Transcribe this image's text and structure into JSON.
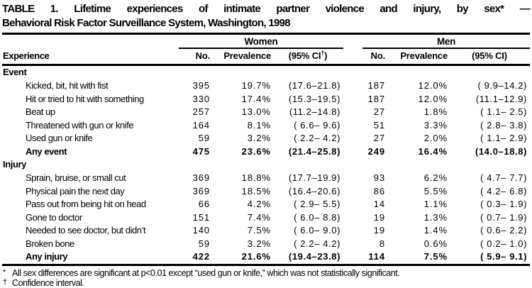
{
  "title": {
    "line1": "TABLE 1. Lifetime experiences of intimate partner violence and injury, by sex* —",
    "line2": "Behavioral Risk Factor Surveillance System, Washington, 1998"
  },
  "header": {
    "experience": "Experience",
    "women_label": "Women",
    "men_label": "Men",
    "no_label": "No.",
    "prevalence_label": "Prevalence",
    "women_ci_pre": "(95% CI",
    "women_ci_dagger": "†",
    "women_ci_post": ")",
    "men_ci": "(95% CI)"
  },
  "table": {
    "sections": [
      {
        "label": "Event",
        "rows": [
          {
            "experience": "Kicked, bit, hit with fist",
            "bold": false,
            "women": {
              "no": "395",
              "prevalence": "19.7%",
              "ci": "(17.6–21.8)"
            },
            "men": {
              "no": "187",
              "prevalence": "12.0%",
              "ci": "( 9.9–14.2)"
            }
          },
          {
            "experience": "Hit or tried to hit with something",
            "bold": false,
            "women": {
              "no": "330",
              "prevalence": "17.4%",
              "ci": "(15.3–19.5)"
            },
            "men": {
              "no": "187",
              "prevalence": "12.0%",
              "ci": "(11.1–12.9)"
            }
          },
          {
            "experience": "Beat up",
            "bold": false,
            "women": {
              "no": "257",
              "prevalence": "13.0%",
              "ci": "(11.2–14.8)"
            },
            "men": {
              "no": "27",
              "prevalence": "1.8%",
              "ci": "( 1.1– 2.5)"
            }
          },
          {
            "experience": "Threatened with gun or knife",
            "bold": false,
            "women": {
              "no": "164",
              "prevalence": "8.1%",
              "ci": "( 6.6– 9.6)"
            },
            "men": {
              "no": "51",
              "prevalence": "3.3%",
              "ci": "( 2.8– 3.8)"
            }
          },
          {
            "experience": "Used gun or knife",
            "bold": false,
            "women": {
              "no": "59",
              "prevalence": "3.2%",
              "ci": "( 2.2– 4.2)"
            },
            "men": {
              "no": "27",
              "prevalence": "2.0%",
              "ci": "( 1.1– 2.9)"
            }
          },
          {
            "experience": "Any event",
            "bold": true,
            "women": {
              "no": "475",
              "prevalence": "23.6%",
              "ci": "(21.4–25.8)"
            },
            "men": {
              "no": "249",
              "prevalence": "16.4%",
              "ci": "(14.0–18.8)"
            }
          }
        ]
      },
      {
        "label": "Injury",
        "rows": [
          {
            "experience": "Sprain, bruise, or small cut",
            "bold": false,
            "women": {
              "no": "369",
              "prevalence": "18.8%",
              "ci": "(17.7–19.9)"
            },
            "men": {
              "no": "93",
              "prevalence": "6.2%",
              "ci": "( 4.7– 7.7)"
            }
          },
          {
            "experience": "Physical pain the next day",
            "bold": false,
            "women": {
              "no": "369",
              "prevalence": "18.5%",
              "ci": "(16.4–20.6)"
            },
            "men": {
              "no": "86",
              "prevalence": "5.5%",
              "ci": "( 4.2– 6.8)"
            }
          },
          {
            "experience": "Pass out from being hit on head",
            "bold": false,
            "women": {
              "no": "66",
              "prevalence": "4.2%",
              "ci": "( 2.9– 5.5)"
            },
            "men": {
              "no": "14",
              "prevalence": "1.1%",
              "ci": "( 0.3– 1.9)"
            }
          },
          {
            "experience": "Gone to doctor",
            "bold": false,
            "women": {
              "no": "151",
              "prevalence": "7.4%",
              "ci": "( 6.0– 8.8)"
            },
            "men": {
              "no": "19",
              "prevalence": "1.3%",
              "ci": "( 0.7– 1.9)"
            }
          },
          {
            "experience": "Needed to see doctor, but didn’t",
            "bold": false,
            "women": {
              "no": "140",
              "prevalence": "7.5%",
              "ci": "( 6.0– 9.0)"
            },
            "men": {
              "no": "19",
              "prevalence": "1.4%",
              "ci": "( 0.6– 2.2)"
            }
          },
          {
            "experience": "Broken bone",
            "bold": false,
            "women": {
              "no": "59",
              "prevalence": "3.2%",
              "ci": "( 2.2– 4.2)"
            },
            "men": {
              "no": "8",
              "prevalence": "0.6%",
              "ci": "( 0.2– 1.0)"
            }
          },
          {
            "experience": "Any injury",
            "bold": true,
            "women": {
              "no": "422",
              "prevalence": "21.6%",
              "ci": "(19.4–23.8)"
            },
            "men": {
              "no": "114",
              "prevalence": "7.5%",
              "ci": "( 5.9– 9.1)"
            }
          }
        ]
      }
    ]
  },
  "footnotes": [
    {
      "marker": "*",
      "text": "All sex differences are significant at p<0.01 except “used gun or knife,” which was not statistically significant."
    },
    {
      "marker": "†",
      "text": "Confidence interval."
    }
  ]
}
